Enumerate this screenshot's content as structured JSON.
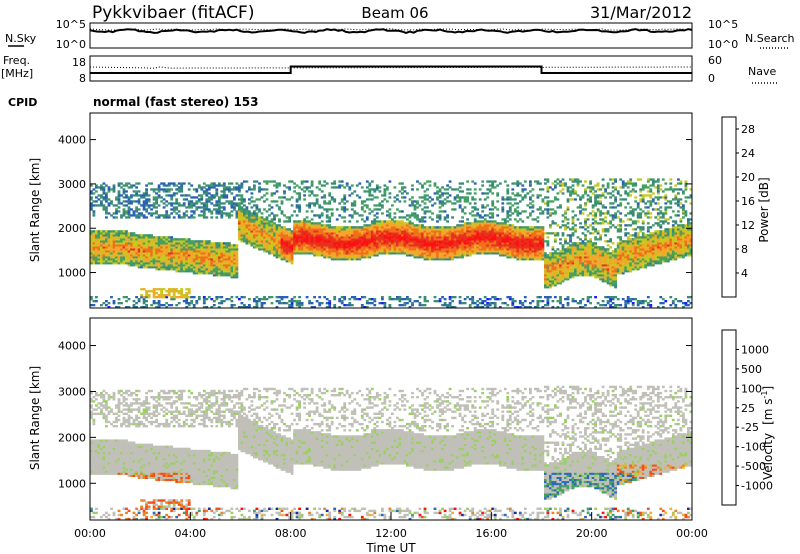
{
  "header": {
    "station": "Pykkvibaer (fitACF)",
    "beam": "Beam 06",
    "date": "31/Mar/2012"
  },
  "panel_sky": {
    "left_label": "N.Sky",
    "left_ticks": [
      "10^5",
      "10^0"
    ],
    "right_label": "N.Search",
    "right_ticks": [
      "10^5",
      "10^0"
    ]
  },
  "panel_freq": {
    "left_label_1": "Freq.",
    "left_label_2": "[MHz]",
    "left_ticks": [
      "18",
      "8"
    ],
    "right_label": "Nave",
    "right_ticks": [
      "60",
      "0"
    ]
  },
  "cpid": {
    "label": "CPID",
    "text": "normal (fast stereo) 153"
  },
  "colors": {
    "power": [
      "#1a1aff",
      "#2a5fb8",
      "#3a8a78",
      "#44a060",
      "#c8c81e",
      "#f2a62a",
      "#f0701a",
      "#e83020",
      "#ff1010"
    ],
    "velocity": [
      "#ff1010",
      "#f0501a",
      "#f08020",
      "#f0b030",
      "#c0c0b8",
      "#9ad060",
      "#44a060",
      "#2a6ab8",
      "#1a2aa0"
    ]
  },
  "chart_data": [
    {
      "type": "heatmap",
      "ylabel": "Slant Range [km]",
      "yticks": [
        "1000",
        "2000",
        "3000",
        "4000"
      ],
      "ylim": [
        200,
        4600
      ],
      "colorbar_label": "Power [dB]",
      "colorbar_ticks": [
        "4",
        "8",
        "12",
        "16",
        "20",
        "24",
        "28"
      ]
    },
    {
      "type": "heatmap",
      "ylabel": "Slant Range [km]",
      "yticks": [
        "1000",
        "2000",
        "3000",
        "4000"
      ],
      "ylim": [
        200,
        4600
      ],
      "colorbar_label": "Velocity",
      "colorbar_unit": "[m s",
      "colorbar_unit_exp": "-1",
      "colorbar_unit_end": "]",
      "colorbar_ticks": [
        "-1000",
        "-500",
        "-100",
        "-25",
        "25",
        "100",
        "500",
        "1000"
      ],
      "xlabel": "Time UT",
      "xticks": [
        "00:00",
        "04:00",
        "08:00",
        "12:00",
        "16:00",
        "20:00",
        "00:00"
      ],
      "xlim_hours": [
        0,
        24
      ]
    }
  ]
}
